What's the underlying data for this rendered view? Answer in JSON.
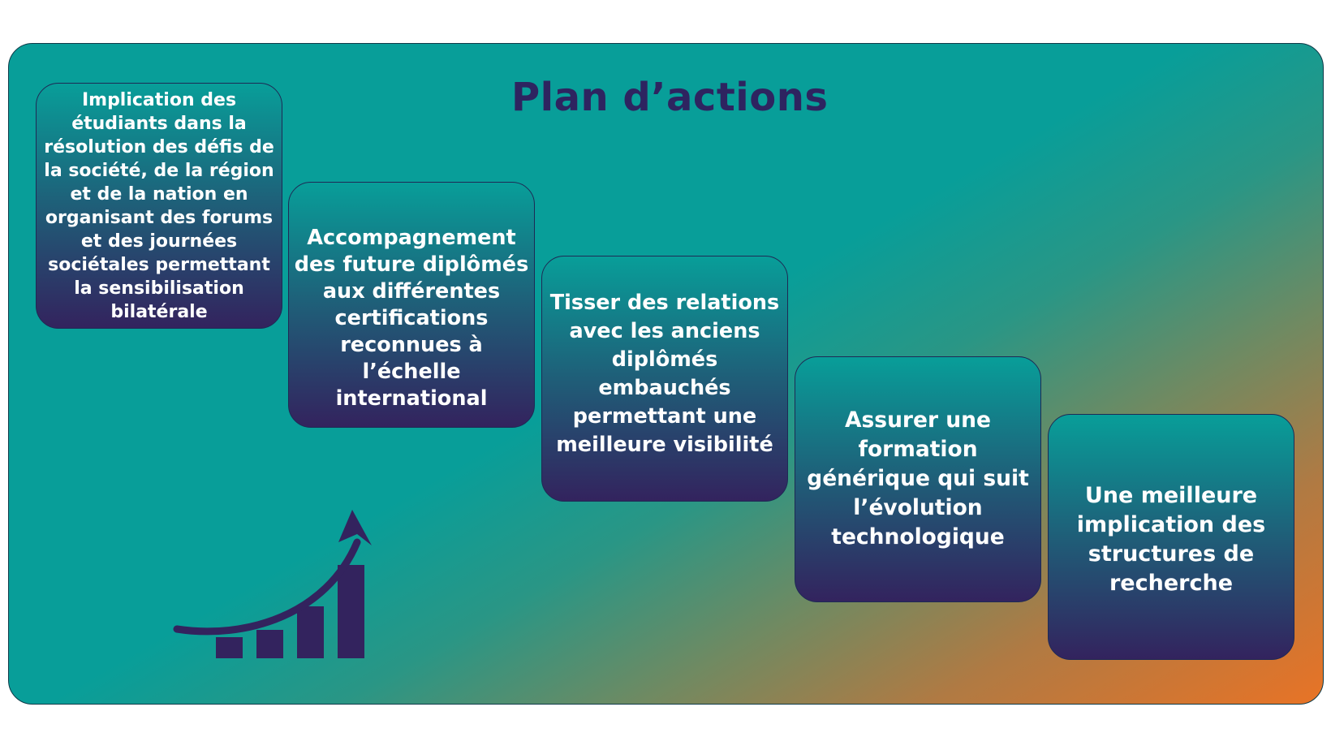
{
  "title": "Plan d’actions",
  "steps": [
    {
      "text": "Implication des étudiants dans la résolution des défis de la société, de la région et de la nation en organisant des forums et des journées sociétales permettant la sensibilisation bilatérale"
    },
    {
      "text": "Accompagnement des future diplômés aux différentes certifications reconnues à l’échelle international"
    },
    {
      "text": "Tisser des relations avec les anciens diplômés embauchés permettant une meilleure visibilité"
    },
    {
      "text": "Assurer une formation générique qui suit l’évolution technologique"
    },
    {
      "text": "Une meilleure implication des structures de recherche"
    }
  ],
  "icon": "growth-chart-arrow-icon",
  "colors": {
    "title": "#2e2460",
    "box_top": "#089e99",
    "box_bottom": "#33235e",
    "background_start": "#089e99",
    "background_end": "#e87326",
    "icon": "#33235e"
  }
}
